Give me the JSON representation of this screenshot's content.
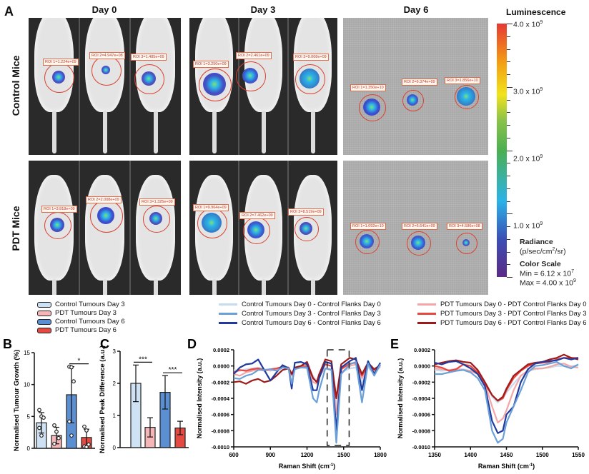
{
  "panel_a": {
    "label": "A",
    "days": [
      "Day 0",
      "Day 3",
      "Day 6"
    ],
    "rows": [
      "Control Mice",
      "PDT Mice"
    ],
    "roi_labels": {
      "control": [
        [
          "ROI 1=1.224e+09",
          "ROI 2=4.947e+08",
          "ROI 3=1.485e+09"
        ],
        [
          "ROI 1=3.250e+09",
          "ROI 2=2.461e+09",
          "ROI 3=9.008e+09"
        ],
        [
          "ROI 1=1.350e+10",
          "ROI 2=6.374e+09",
          "ROI 3=1.856e+10"
        ]
      ],
      "pdt": [
        [
          "ROI 1=3.818e+09",
          "ROI 2=2.008e+09",
          "ROI 3=1.325e+09"
        ],
        [
          "ROI 1=9.964e+09",
          "ROI 2=7.462e+09",
          "ROI 3=8.519e+09"
        ],
        [
          "ROI 1=1.092e+10",
          "ROI 2=6.641e+09",
          "ROI 3=4.586e+08"
        ]
      ]
    },
    "colorbar": {
      "title": "Luminescence",
      "ticks": [
        "4.0 x 10",
        "3.0 x 10",
        "2.0 x 10",
        "1.0 x 10"
      ],
      "tick_exp": "9",
      "radiance_label": "Radiance",
      "radiance_unit": "(p/sec/cm",
      "radiance_unit_sup": "2",
      "radiance_unit_end": "/sr)",
      "scale_label": "Color Scale",
      "min_label": "Min = 6.12 x 10",
      "min_exp": "7",
      "max_label": "Max = 4.00 x 10",
      "max_exp": "9",
      "colors": [
        "#5b2a86",
        "#3b4fb5",
        "#2bb3e8",
        "#4caf50",
        "#f2e31b",
        "#f39c12",
        "#e53935"
      ]
    }
  },
  "legends": {
    "bars": [
      {
        "label": "Control Tumours Day 3",
        "color": "#cfe2f3"
      },
      {
        "label": "PDT Tumours Day 3",
        "color": "#f4b6b6"
      },
      {
        "label": "Control Tumours Day 6",
        "color": "#5b8fd1"
      },
      {
        "label": "PDT Tumours Day 6",
        "color": "#e34a41"
      }
    ],
    "control_lines": [
      {
        "label": "Control Tumours Day 0 - Control Flanks Day 0",
        "color": "#c6dbef"
      },
      {
        "label": "Control Tumours Day 3 - Control Flanks Day 3",
        "color": "#6a9fd8"
      },
      {
        "label": "Control Tumours Day 6 - Control Flanks Day 6",
        "color": "#1f3a9e"
      }
    ],
    "pdt_lines": [
      {
        "label": "PDT Tumours Day 0 - PDT Control Flanks Day 0",
        "color": "#f4a6a6"
      },
      {
        "label": "PDT Tumours Day 3 - PDT Control Flanks Day 3",
        "color": "#e8473f"
      },
      {
        "label": "PDT Tumours Day 6 - PDT Control Flanks Day 6",
        "color": "#9e1a1a"
      }
    ]
  },
  "chart_data": [
    {
      "panel": "B",
      "type": "bar",
      "ylabel": "Normalised Tumour Growth (%)",
      "ylim": [
        0,
        15
      ],
      "yticks": [
        "0",
        "5",
        "10",
        "15"
      ],
      "categories": [
        "Control Tumours Day 3",
        "PDT Tumours Day 3",
        "Control Tumours Day 6",
        "PDT Tumours Day 6"
      ],
      "values": [
        4.0,
        2.0,
        8.4,
        1.7
      ],
      "error_sd": [
        1.6,
        1.3,
        4.4,
        1.3
      ],
      "points": [
        [
          6.0,
          5.0,
          4.8,
          3.2,
          2.0
        ],
        [
          3.6,
          2.6,
          1.6,
          0.7
        ],
        [
          12.8,
          12.7,
          10.5,
          4.2,
          2.0
        ],
        [
          3.4,
          2.8,
          0.6,
          0.3,
          0.2
        ]
      ],
      "significance": [
        {
          "between": [
            2,
            3
          ],
          "label": "*"
        }
      ]
    },
    {
      "panel": "C",
      "type": "bar",
      "ylabel": "Normalised Peak Difference (a.u.)",
      "ylim": [
        0,
        3
      ],
      "yticks": [
        "0",
        "1",
        "2",
        "3"
      ],
      "categories": [
        "Control Tumours Day 3",
        "PDT Tumours Day 3",
        "Control Tumours Day 6",
        "PDT Tumours Day 6"
      ],
      "values": [
        2.0,
        0.63,
        1.72,
        0.61
      ],
      "error_sd": [
        0.57,
        0.3,
        0.52,
        0.21
      ],
      "significance": [
        {
          "between": [
            0,
            1
          ],
          "label": "***"
        },
        {
          "between": [
            2,
            3
          ],
          "label": "***"
        }
      ]
    },
    {
      "panel": "D",
      "type": "line",
      "xlabel": "Raman Shift (cm",
      "xlabel_sup": "-1",
      "xlabel_end": ")",
      "ylabel": "Normalised Intensity (a.u.)",
      "xlim": [
        600,
        1800
      ],
      "ylim": [
        -0.001,
        0.0002
      ],
      "xticks": [
        "600",
        "900",
        "1200",
        "1500",
        "1800"
      ],
      "yticks": [
        "0.0002",
        "0.0000",
        "-0.0002",
        "-0.0004",
        "-0.0006",
        "-0.0008",
        "-0.0010"
      ],
      "highlight_box": [
        1365,
        1545
      ],
      "x": [
        600,
        650,
        700,
        750,
        800,
        850,
        900,
        950,
        1000,
        1050,
        1075,
        1100,
        1150,
        1200,
        1250,
        1280,
        1300,
        1350,
        1400,
        1440,
        1480,
        1550,
        1600,
        1650,
        1700,
        1750,
        1800
      ],
      "series": [
        {
          "name": "Control Tumours Day 0 - Control Flanks Day 0",
          "values": [
            -5e-05,
            -6e-05,
            -4e-05,
            -3e-05,
            -2e-05,
            -4e-05,
            -6e-05,
            -4e-05,
            -2e-05,
            -4e-05,
            -0.0001,
            -3e-05,
            -2e-05,
            -3e-05,
            -0.00012,
            -0.0002,
            -0.0001,
            -3e-05,
            -5e-05,
            -0.0005,
            -8e-05,
            -3e-05,
            -2e-05,
            -0.0002,
            -2e-05,
            -0.0001,
            -1e-05
          ]
        },
        {
          "name": "Control Tumours Day 3 - Control Flanks Day 3",
          "values": [
            -0.00015,
            -0.00016,
            -0.00012,
            -0.0001,
            -5e-05,
            -5e-05,
            -4e-05,
            -6e-05,
            -2e-05,
            -3e-05,
            -0.00022,
            -4e-05,
            -2e-05,
            -2e-05,
            -0.0004,
            -0.00045,
            -0.0003,
            -3e-05,
            -5e-05,
            -0.00095,
            -0.0001,
            2e-05,
            5e-05,
            -0.00045,
            3e-05,
            -0.00012,
            2e-05
          ]
        },
        {
          "name": "Control Tumours Day 6 - Control Flanks Day 6",
          "values": [
            -0.0001,
            -2e-05,
            2e-05,
            3e-05,
            8e-05,
            -5e-05,
            -0.00018,
            -8e-05,
            1e-05,
            -3e-05,
            -0.00028,
            4e-05,
            5e-05,
            2e-05,
            -0.0003,
            -0.0003,
            -0.00015,
            5e-05,
            3e-05,
            -0.0008,
            -2e-05,
            6e-05,
            0.0001,
            -0.0003,
            6e-05,
            -0.0001,
            4e-05
          ]
        },
        {
          "name": "PDT Tumours Day 0 - PDT Control Flanks Day 0",
          "values": [
            -0.0001,
            -0.00012,
            -8e-05,
            -6e-05,
            -4e-05,
            -6e-05,
            -5e-05,
            -4e-05,
            -2e-05,
            -3e-05,
            -0.00012,
            -3e-05,
            -2e-05,
            -2e-05,
            -0.0002,
            -0.00022,
            -0.00012,
            -3e-05,
            -4e-05,
            -0.0006,
            -8e-05,
            0.0,
            2e-05,
            -0.00015,
            0.0,
            -8e-05,
            0.0
          ]
        },
        {
          "name": "PDT Tumours Day 3 - PDT Control Flanks Day 3",
          "values": [
            -8e-05,
            -5e-05,
            -6e-05,
            -4e-05,
            -3e-05,
            -5e-05,
            -4e-05,
            -3e-05,
            -1e-05,
            -2e-05,
            -0.0001,
            -2e-05,
            0.0,
            0.0,
            -0.00015,
            -0.0002,
            -0.0001,
            2e-05,
            0.0,
            -0.0004,
            -4e-05,
            3e-05,
            4e-05,
            -0.00012,
            2e-05,
            -5e-05,
            1e-05
          ]
        },
        {
          "name": "PDT Tumours Day 6 - PDT Control Flanks Day 6",
          "values": [
            -0.0002,
            -0.00019,
            -0.00022,
            -0.00018,
            -0.00016,
            -0.0002,
            -0.00018,
            -0.00012,
            -5e-05,
            -3e-05,
            -0.0001,
            -2e-05,
            0.0,
            5e-05,
            -0.00015,
            -0.0002,
            -0.0001,
            8e-05,
            6e-05,
            -0.0004,
            2e-05,
            0.0001,
            8e-05,
            -0.0001,
            4e-05,
            -4e-05,
            1e-05
          ]
        }
      ]
    },
    {
      "panel": "E",
      "type": "line",
      "xlabel": "Raman Shift (cm",
      "xlabel_sup": "-1",
      "xlabel_end": ")",
      "ylabel": "Normalised Intensity (a.u.)",
      "xlim": [
        1350,
        1550
      ],
      "ylim": [
        -0.001,
        0.0002
      ],
      "xticks": [
        "1350",
        "1400",
        "1450",
        "1500",
        "1550"
      ],
      "yticks": [
        "0.0002",
        "0.0000",
        "-0.0002",
        "-0.0004",
        "-0.0006",
        "-0.0008",
        "-0.0010"
      ],
      "x": [
        1350,
        1360,
        1370,
        1380,
        1390,
        1400,
        1410,
        1420,
        1430,
        1438,
        1445,
        1450,
        1460,
        1470,
        1480,
        1490,
        1500,
        1510,
        1520,
        1530,
        1540,
        1550
      ],
      "series": [
        {
          "name": "Control Tumours Day 0 - Control Flanks Day 0",
          "values": [
            -5e-05,
            -6e-05,
            -5e-05,
            -4e-05,
            -4e-05,
            -6e-05,
            -0.0001,
            -0.0002,
            -0.00038,
            -0.00045,
            -0.0004,
            -0.00033,
            -0.00022,
            -0.00012,
            -6e-05,
            -4e-05,
            -3e-05,
            -2e-05,
            0.0,
            0.0,
            0.0,
            1e-05
          ]
        },
        {
          "name": "Control Tumours Day 3 - Control Flanks Day 3",
          "values": [
            -0.0001,
            -0.0001,
            -8e-05,
            -6e-05,
            -5e-05,
            -8e-05,
            -0.00015,
            -0.0003,
            -0.0008,
            -0.00095,
            -0.0009,
            -0.0007,
            -0.0005,
            -0.0003,
            -8e-05,
            0.0,
            1e-05,
            3e-05,
            5e-05,
            0.0,
            -3e-05,
            2e-05
          ]
        },
        {
          "name": "Control Tumours Day 6 - Control Flanks Day 6",
          "values": [
            4e-05,
            2e-05,
            5e-05,
            6e-05,
            2e-05,
            -3e-05,
            -0.0001,
            -0.00025,
            -0.00068,
            -0.00083,
            -0.0008,
            -0.0006,
            -0.0005,
            -0.0002,
            -4e-05,
            3e-05,
            5e-05,
            6e-05,
            7e-05,
            0.0001,
            8e-05,
            0.0001
          ]
        },
        {
          "name": "PDT Tumours Day 0 - PDT Control Flanks Day 0",
          "values": [
            -3e-05,
            -4e-05,
            -5e-05,
            -4e-05,
            -5e-05,
            -6e-05,
            -0.0001,
            -0.00022,
            -0.0005,
            -0.0007,
            -0.00065,
            -0.00055,
            -0.0003,
            -0.00012,
            -6e-05,
            -3e-05,
            -3e-05,
            -1e-05,
            2e-05,
            3e-05,
            -1e-05,
            -2e-05
          ]
        },
        {
          "name": "PDT Tumours Day 3 - PDT Control Flanks Day 3",
          "values": [
            0.0,
            -2e-05,
            -6e-05,
            -4e-05,
            2e-05,
            0.0,
            -8e-05,
            -0.00022,
            -0.00036,
            -0.00043,
            -0.0004,
            -0.0003,
            -0.00015,
            -6e-05,
            0.0,
            3e-05,
            4e-05,
            5e-05,
            8e-05,
            0.0001,
            0.0001,
            0.0001
          ]
        },
        {
          "name": "PDT Tumours Day 6 - PDT Control Flanks Day 6",
          "values": [
            2e-05,
            4e-05,
            6e-05,
            7e-05,
            5e-05,
            4e-05,
            -5e-05,
            -0.0002,
            -0.00036,
            -0.00043,
            -0.00038,
            -0.00028,
            -0.00012,
            -5e-05,
            2e-05,
            4e-05,
            5e-05,
            8e-05,
            0.0001,
            0.00014,
            0.0001,
            8e-05
          ]
        }
      ]
    }
  ]
}
